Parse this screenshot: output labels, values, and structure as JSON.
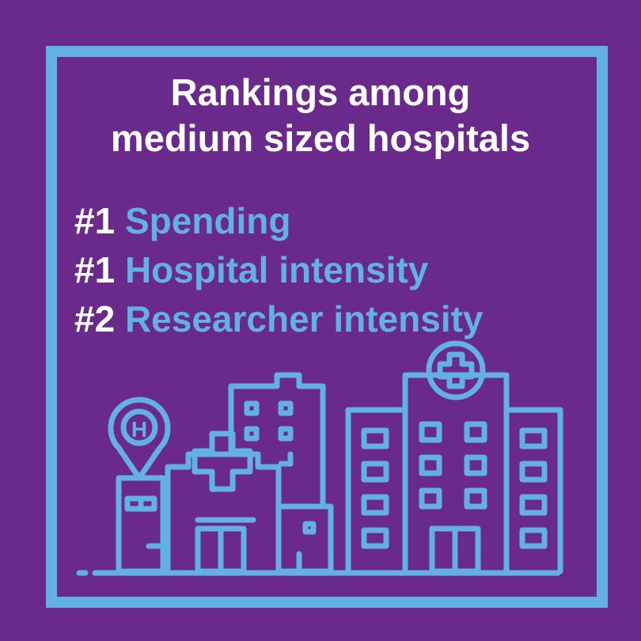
{
  "title": {
    "line1": "Rankings among",
    "line2": "medium sized hospitals"
  },
  "rankings": [
    {
      "rank": "#1",
      "label": "Spending"
    },
    {
      "rank": "#1",
      "label": "Hospital intensity"
    },
    {
      "rank": "#2",
      "label": "Researcher intensity"
    }
  ],
  "illustration": {
    "pin_letter": "H",
    "icon": "hospital-city-icon"
  },
  "colors": {
    "background": "#6a2a8c",
    "accent": "#63b0e3",
    "text": "#ffffff"
  }
}
